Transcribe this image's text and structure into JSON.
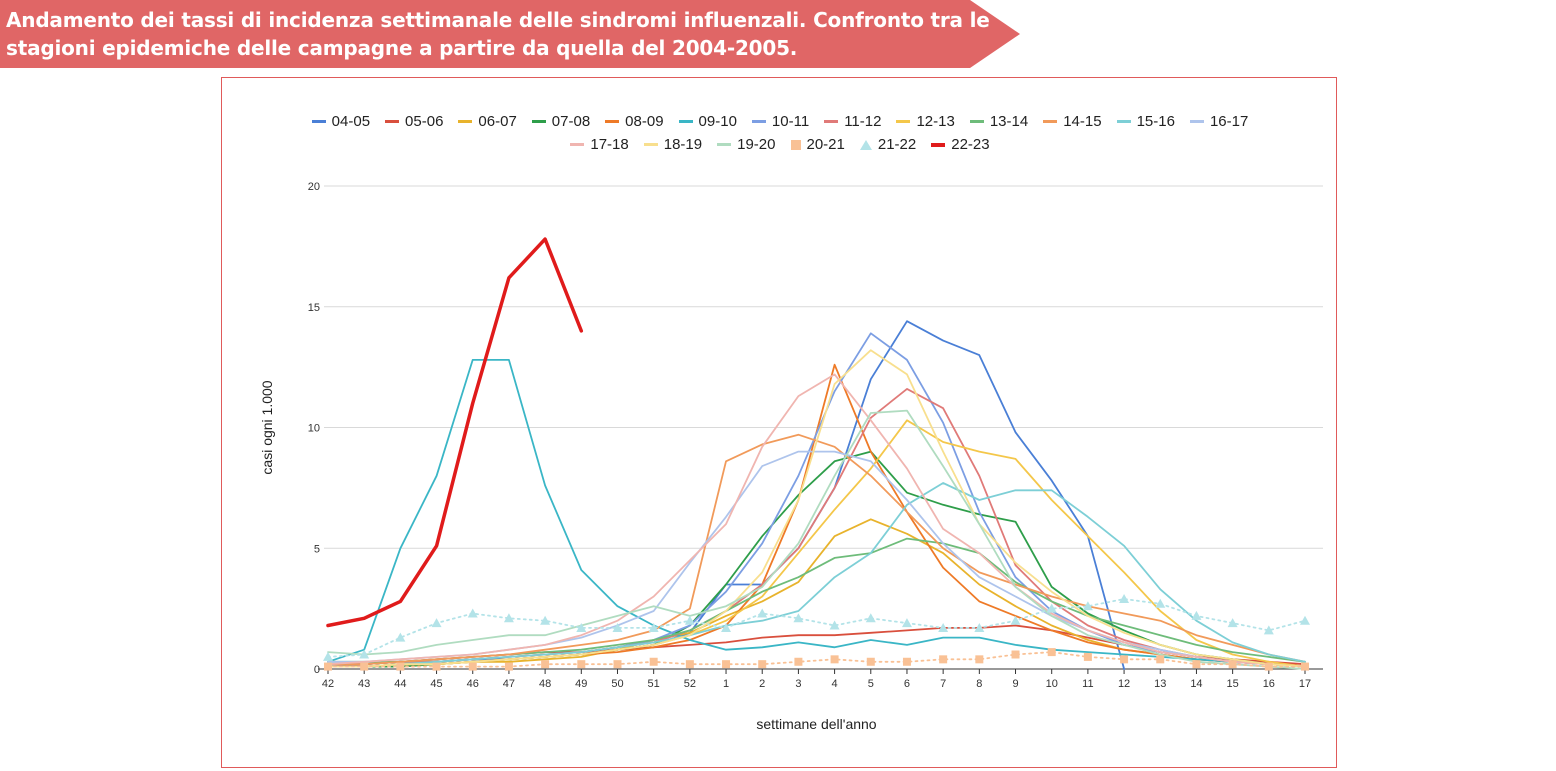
{
  "title": "Andamento dei tassi di incidenza settimanale delle sindromi influenzali. Confronto tra le stagioni epidemiche delle campagne a partire da quella del 2004-2005.",
  "colors": {
    "banner": "#e06666",
    "frame": "#e05a5a",
    "grid": "#d9d9d9"
  },
  "chart_data": {
    "type": "line",
    "xlabel": "settimane dell'anno",
    "ylabel": "casi ogni 1.000",
    "ylim": [
      0,
      20
    ],
    "yticks": [
      0,
      5,
      10,
      15,
      20
    ],
    "grid": true,
    "legend_position": "top",
    "categories": [
      "42",
      "43",
      "44",
      "45",
      "46",
      "47",
      "48",
      "49",
      "50",
      "51",
      "52",
      "1",
      "2",
      "3",
      "4",
      "5",
      "6",
      "7",
      "8",
      "9",
      "10",
      "11",
      "12",
      "13",
      "14",
      "15",
      "16",
      "17"
    ],
    "series": [
      {
        "name": "04-05",
        "color": "#4a7fd6",
        "style": "solid",
        "values": [
          0.2,
          0.2,
          0.3,
          0.3,
          0.4,
          0.4,
          0.5,
          0.6,
          0.8,
          1.0,
          1.5,
          3.5,
          3.5,
          5.0,
          7.5,
          12.0,
          14.4,
          13.6,
          13.0,
          9.8,
          7.8,
          5.5,
          0.0,
          null,
          null,
          null,
          null,
          null
        ]
      },
      {
        "name": "05-06",
        "color": "#d94f3d",
        "style": "solid",
        "values": [
          0.1,
          0.2,
          0.3,
          0.4,
          0.5,
          0.6,
          0.7,
          0.7,
          0.8,
          0.9,
          1.0,
          1.1,
          1.3,
          1.4,
          1.4,
          1.5,
          1.6,
          1.7,
          1.7,
          1.8,
          1.6,
          1.3,
          1.0,
          0.7,
          0.5,
          0.4,
          0.3,
          0.2
        ]
      },
      {
        "name": "06-07",
        "color": "#e8b32c",
        "style": "solid",
        "values": [
          0.1,
          0.1,
          0.2,
          0.2,
          0.3,
          0.3,
          0.4,
          0.5,
          0.8,
          1.2,
          1.5,
          2.2,
          2.8,
          3.6,
          5.5,
          6.2,
          5.6,
          4.8,
          3.5,
          2.6,
          1.8,
          1.2,
          0.8,
          0.6,
          0.4,
          0.3,
          0.2,
          0.1
        ]
      },
      {
        "name": "07-08",
        "color": "#2e9e4a",
        "style": "solid",
        "values": [
          0.1,
          0.1,
          0.1,
          0.2,
          0.3,
          0.4,
          0.5,
          0.6,
          0.8,
          1.0,
          1.8,
          3.5,
          5.5,
          7.2,
          8.6,
          9.0,
          7.3,
          6.8,
          6.4,
          6.1,
          3.4,
          2.3,
          1.6,
          1.0,
          0.6,
          0.4,
          0.2,
          0.1
        ]
      },
      {
        "name": "08-09",
        "color": "#ee7a27",
        "style": "solid",
        "values": [
          0.1,
          0.1,
          0.2,
          0.2,
          0.3,
          0.4,
          0.5,
          0.6,
          0.7,
          0.9,
          1.2,
          1.8,
          3.5,
          7.0,
          12.6,
          9.0,
          6.5,
          4.2,
          2.8,
          2.2,
          1.6,
          1.1,
          0.8,
          0.6,
          0.4,
          0.3,
          0.2,
          0.1
        ]
      },
      {
        "name": "09-10",
        "color": "#3ab6c6",
        "style": "solid",
        "values": [
          0.3,
          0.8,
          5.0,
          8.0,
          12.8,
          12.8,
          7.6,
          4.1,
          2.6,
          1.8,
          1.2,
          0.8,
          0.9,
          1.1,
          0.9,
          1.2,
          1.0,
          1.3,
          1.3,
          1.0,
          0.8,
          0.7,
          0.6,
          0.5,
          0.4,
          0.3,
          0.2,
          0.1
        ]
      },
      {
        "name": "10-11",
        "color": "#7c9ee3",
        "style": "solid",
        "values": [
          0.2,
          0.2,
          0.3,
          0.3,
          0.4,
          0.5,
          0.6,
          0.7,
          0.9,
          1.2,
          1.8,
          3.2,
          5.2,
          8.0,
          11.5,
          13.9,
          12.8,
          10.2,
          6.5,
          3.8,
          2.4,
          1.6,
          1.0,
          0.7,
          0.5,
          0.3,
          0.2,
          0.1
        ]
      },
      {
        "name": "11-12",
        "color": "#e07a78",
        "style": "solid",
        "values": [
          0.2,
          0.2,
          0.3,
          0.3,
          0.4,
          0.5,
          0.6,
          0.7,
          0.9,
          1.1,
          1.6,
          2.4,
          3.5,
          5.0,
          7.5,
          10.4,
          11.6,
          10.8,
          8.0,
          4.3,
          2.8,
          1.8,
          1.2,
          0.8,
          0.5,
          0.3,
          0.2,
          0.1
        ]
      },
      {
        "name": "12-13",
        "color": "#f4c74a",
        "style": "solid",
        "values": [
          0.1,
          0.1,
          0.2,
          0.2,
          0.3,
          0.4,
          0.5,
          0.6,
          0.8,
          1.0,
          1.4,
          2.0,
          3.0,
          4.8,
          6.6,
          8.3,
          10.3,
          9.4,
          9.0,
          8.7,
          7.0,
          5.5,
          4.0,
          2.4,
          1.2,
          0.6,
          0.3,
          0.1
        ]
      },
      {
        "name": "13-14",
        "color": "#6ebc7a",
        "style": "solid",
        "values": [
          0.3,
          0.3,
          0.3,
          0.4,
          0.5,
          0.6,
          0.7,
          0.8,
          1.0,
          1.2,
          1.6,
          2.4,
          3.2,
          3.8,
          4.6,
          4.8,
          5.4,
          5.2,
          4.8,
          3.6,
          2.8,
          2.2,
          1.8,
          1.4,
          1.0,
          0.7,
          0.5,
          0.3
        ]
      },
      {
        "name": "14-15",
        "color": "#f19a5a",
        "style": "solid",
        "values": [
          0.2,
          0.2,
          0.3,
          0.4,
          0.5,
          0.6,
          0.8,
          1.0,
          1.2,
          1.6,
          2.5,
          8.6,
          9.3,
          9.7,
          9.2,
          8.0,
          6.5,
          5.0,
          4.0,
          3.5,
          3.0,
          2.6,
          2.3,
          2.0,
          1.4,
          1.0,
          0.6,
          0.3
        ]
      },
      {
        "name": "15-16",
        "color": "#7dcfd6",
        "style": "solid",
        "values": [
          0.1,
          0.1,
          0.2,
          0.3,
          0.4,
          0.5,
          0.6,
          0.7,
          0.9,
          1.1,
          1.4,
          1.8,
          2.0,
          2.4,
          3.8,
          4.8,
          6.8,
          7.7,
          7.0,
          7.4,
          7.4,
          6.3,
          5.1,
          3.3,
          2.0,
          1.1,
          0.6,
          0.3
        ]
      },
      {
        "name": "16-17",
        "color": "#aec4ec",
        "style": "solid",
        "values": [
          0.3,
          0.3,
          0.4,
          0.5,
          0.6,
          0.8,
          1.0,
          1.3,
          1.8,
          2.4,
          4.4,
          6.3,
          8.4,
          9.0,
          9.0,
          8.6,
          7.0,
          5.2,
          3.8,
          3.0,
          2.2,
          1.6,
          1.1,
          0.8,
          0.5,
          0.3,
          0.2,
          0.1
        ]
      },
      {
        "name": "17-18",
        "color": "#f0b5b0",
        "style": "solid",
        "values": [
          0.2,
          0.3,
          0.4,
          0.5,
          0.6,
          0.8,
          1.0,
          1.4,
          2.0,
          3.0,
          4.5,
          6.0,
          9.2,
          11.3,
          12.2,
          10.3,
          8.3,
          5.8,
          4.8,
          3.4,
          2.3,
          1.6,
          1.1,
          0.7,
          0.5,
          0.3,
          0.2,
          0.1
        ]
      },
      {
        "name": "18-19",
        "color": "#f8df8e",
        "style": "solid",
        "values": [
          0.1,
          0.1,
          0.2,
          0.2,
          0.3,
          0.4,
          0.5,
          0.6,
          0.8,
          1.0,
          1.4,
          2.4,
          4.0,
          7.0,
          11.8,
          13.2,
          12.2,
          9.0,
          6.0,
          4.4,
          3.2,
          2.2,
          1.5,
          1.0,
          0.6,
          0.4,
          0.2,
          0.1
        ]
      },
      {
        "name": "19-20",
        "color": "#b0dcc0",
        "style": "solid",
        "values": [
          0.7,
          0.6,
          0.7,
          1.0,
          1.2,
          1.4,
          1.4,
          1.8,
          2.2,
          2.6,
          2.2,
          2.6,
          3.4,
          5.2,
          8.0,
          10.6,
          10.7,
          8.4,
          6.0,
          3.4,
          2.2,
          1.4,
          1.0,
          0.6,
          0.3,
          0.2,
          0.1,
          0.0
        ]
      },
      {
        "name": "20-21",
        "color": "#f9c195",
        "style": "square-dotted",
        "values": [
          0.1,
          0.1,
          0.1,
          0.1,
          0.1,
          0.1,
          0.2,
          0.2,
          0.2,
          0.3,
          0.2,
          0.2,
          0.2,
          0.3,
          0.4,
          0.3,
          0.3,
          0.4,
          0.4,
          0.6,
          0.7,
          0.5,
          0.4,
          0.4,
          0.2,
          0.2,
          0.1,
          0.1
        ]
      },
      {
        "name": "21-22",
        "color": "#b3e3e8",
        "style": "triangle-dotted",
        "values": [
          0.5,
          0.6,
          1.3,
          1.9,
          2.3,
          2.1,
          2.0,
          1.7,
          1.7,
          1.7,
          2.0,
          1.7,
          2.3,
          2.1,
          1.8,
          2.1,
          1.9,
          1.7,
          1.7,
          2.0,
          2.5,
          2.6,
          2.9,
          2.7,
          2.2,
          1.9,
          1.6,
          2.0
        ]
      },
      {
        "name": "22-23",
        "color": "#e01b1b",
        "style": "thick",
        "values": [
          1.8,
          2.1,
          2.8,
          5.1,
          11.0,
          16.2,
          17.8,
          14.0,
          null,
          null,
          null,
          null,
          null,
          null,
          null,
          null,
          null,
          null,
          null,
          null,
          null,
          null,
          null,
          null,
          null,
          null,
          null,
          null
        ]
      }
    ]
  }
}
